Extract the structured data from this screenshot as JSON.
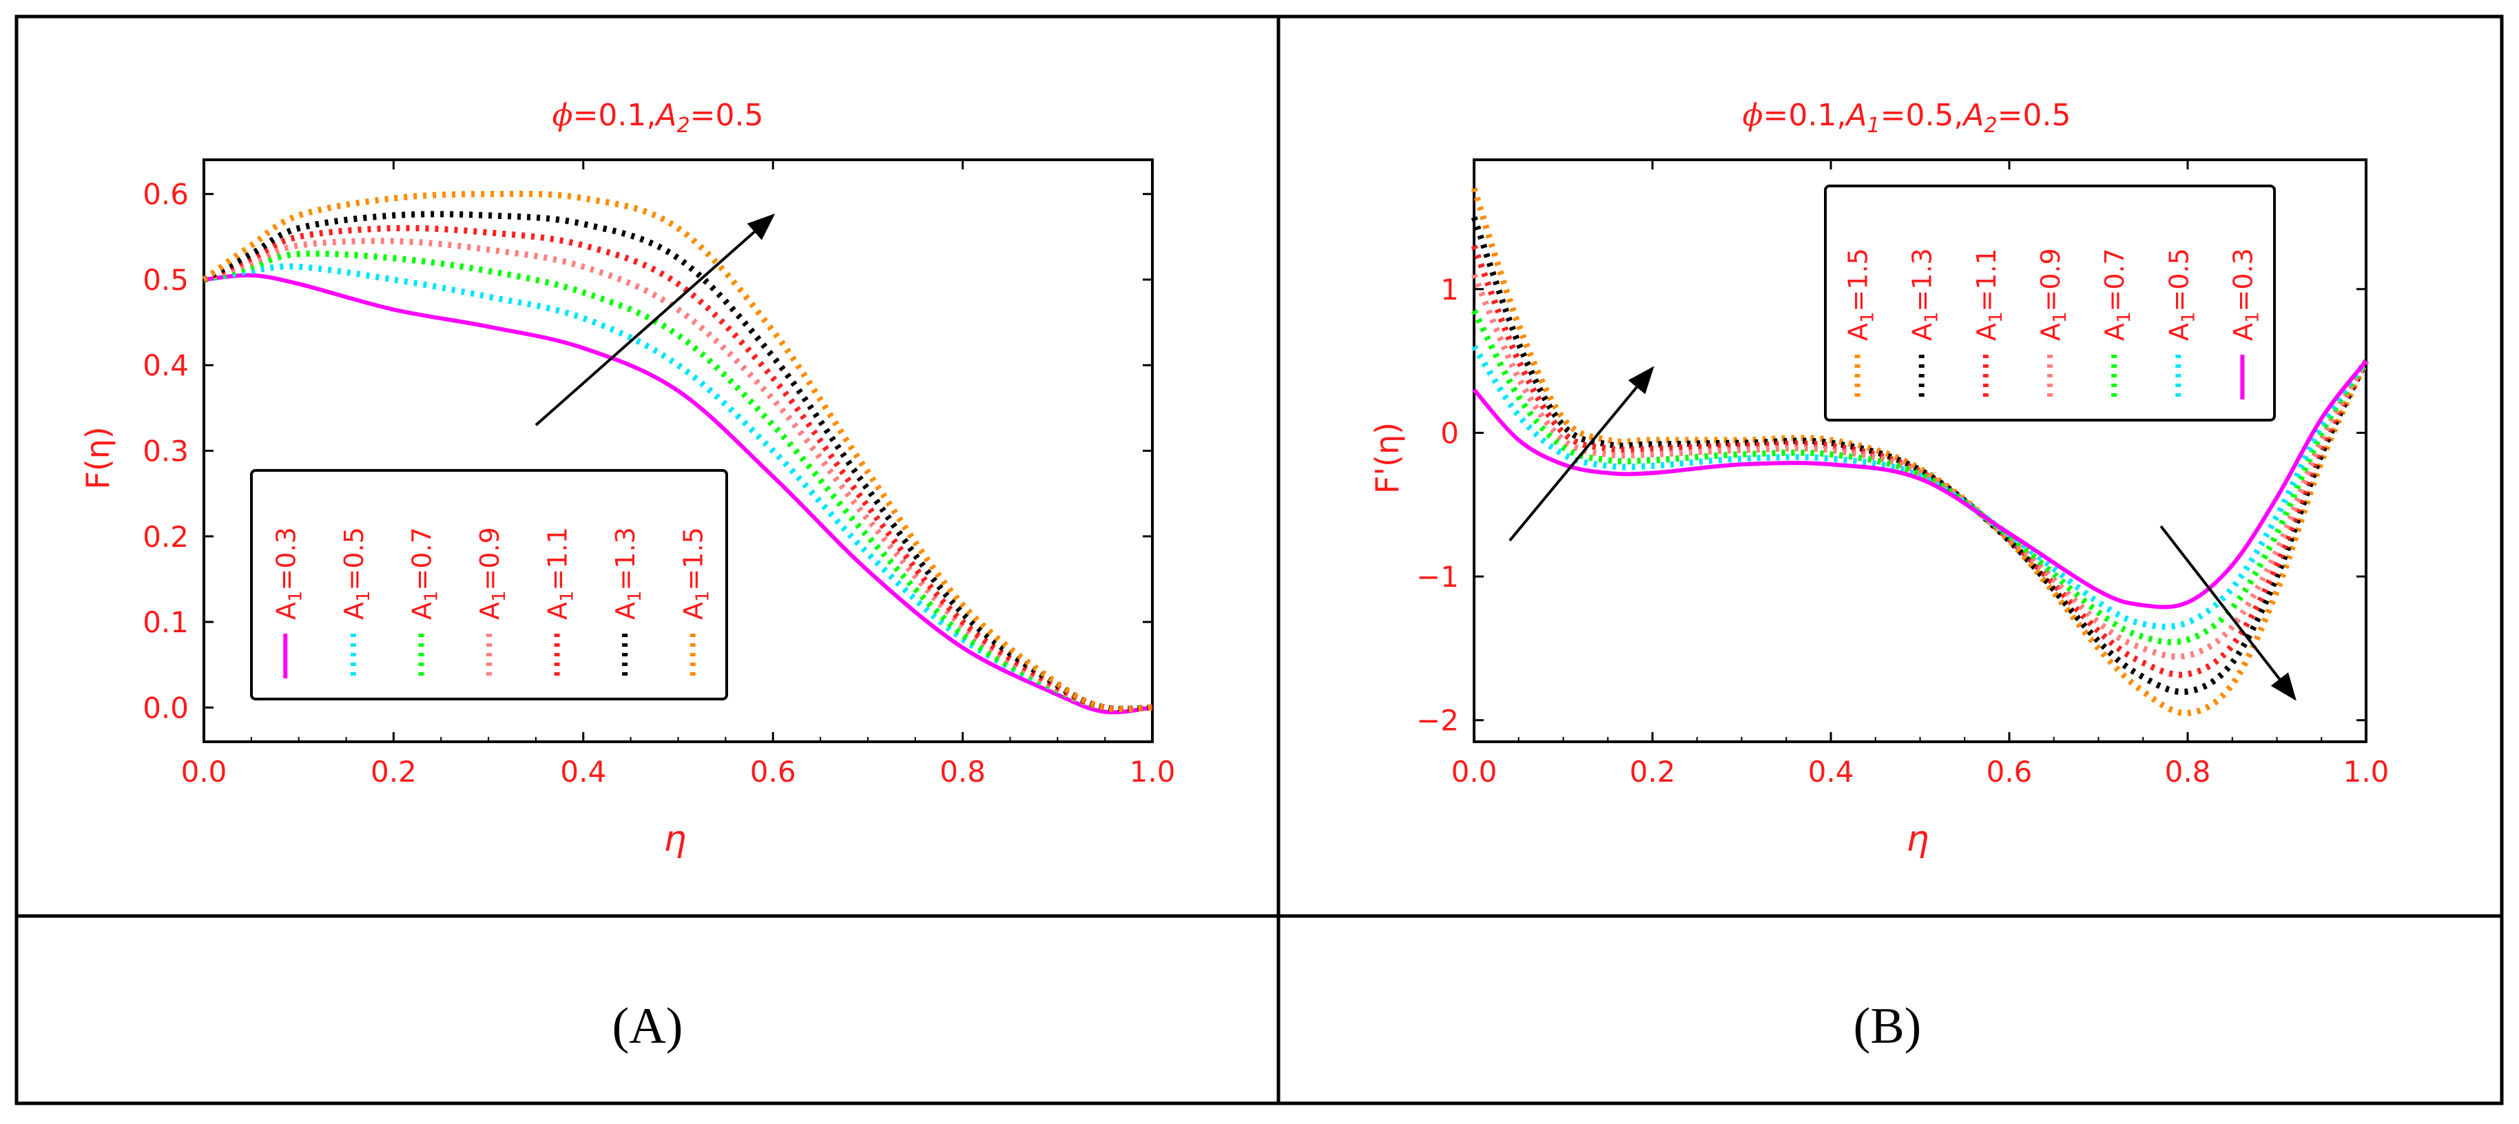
{
  "colors": {
    "text_red": "#ff1a1a",
    "series": [
      "#ff00ff",
      "#00e5ff",
      "#00ff00",
      "#ff8080",
      "#ff2020",
      "#000000",
      "#a0522d",
      "#ff8c00"
    ]
  },
  "captions": [
    "(A)",
    "(B)"
  ],
  "chart_data": [
    {
      "type": "line",
      "title_parts": {
        "phi": "ϕ",
        "rest": "=0.1,",
        "a2": "A",
        "a2sub": "2",
        "a2val": "=0.5"
      },
      "xlabel": "η",
      "ylabel": "F(η)",
      "xlim": [
        0.0,
        1.0
      ],
      "ylim": [
        -0.04,
        0.64
      ],
      "xticks": [
        "0.0",
        "0.2",
        "0.4",
        "0.6",
        "0.8",
        "1.0"
      ],
      "yticks": [
        "0.0",
        "0.1",
        "0.2",
        "0.3",
        "0.4",
        "0.5",
        "0.6"
      ],
      "legend_position": "bottom-left",
      "legend_orientation": "vertical-rotated",
      "series": [
        {
          "name": "A₁=0.3",
          "label_a": "A",
          "label_sub": "1",
          "label_val": "=0.3",
          "style": "solid",
          "x": [
            0.0,
            0.05,
            0.1,
            0.2,
            0.3,
            0.4,
            0.5,
            0.6,
            0.7,
            0.8,
            0.9,
            0.95,
            1.0
          ],
          "y": [
            0.5,
            0.505,
            0.495,
            0.465,
            0.445,
            0.42,
            0.37,
            0.27,
            0.16,
            0.07,
            0.015,
            -0.005,
            0.0
          ]
        },
        {
          "name": "A₁=0.5",
          "label_a": "A",
          "label_sub": "1",
          "label_val": "=0.5",
          "style": "dotted",
          "x": [
            0.0,
            0.05,
            0.1,
            0.2,
            0.3,
            0.4,
            0.5,
            0.6,
            0.7,
            0.8,
            0.9,
            0.95,
            1.0
          ],
          "y": [
            0.5,
            0.51,
            0.515,
            0.5,
            0.48,
            0.455,
            0.4,
            0.3,
            0.18,
            0.08,
            0.02,
            0.0,
            0.0
          ]
        },
        {
          "name": "A₁=0.7",
          "label_a": "A",
          "label_sub": "1",
          "label_val": "=0.7",
          "style": "dotted",
          "x": [
            0.0,
            0.05,
            0.1,
            0.2,
            0.3,
            0.4,
            0.5,
            0.6,
            0.7,
            0.8,
            0.9,
            0.95,
            1.0
          ],
          "y": [
            0.5,
            0.515,
            0.53,
            0.525,
            0.51,
            0.485,
            0.435,
            0.33,
            0.2,
            0.085,
            0.02,
            0.0,
            0.0
          ]
        },
        {
          "name": "A₁=0.9",
          "label_a": "A",
          "label_sub": "1",
          "label_val": "=0.9",
          "style": "dotted",
          "x": [
            0.0,
            0.05,
            0.1,
            0.2,
            0.3,
            0.4,
            0.5,
            0.6,
            0.7,
            0.8,
            0.9,
            0.95,
            1.0
          ],
          "y": [
            0.5,
            0.52,
            0.54,
            0.545,
            0.535,
            0.515,
            0.465,
            0.36,
            0.22,
            0.095,
            0.022,
            0.0,
            0.0
          ]
        },
        {
          "name": "A₁=1.1",
          "label_a": "A",
          "label_sub": "1",
          "label_val": "=1.1",
          "style": "dotted",
          "x": [
            0.0,
            0.05,
            0.1,
            0.2,
            0.3,
            0.4,
            0.5,
            0.6,
            0.7,
            0.8,
            0.9,
            0.95,
            1.0
          ],
          "y": [
            0.5,
            0.525,
            0.55,
            0.56,
            0.555,
            0.54,
            0.495,
            0.385,
            0.235,
            0.1,
            0.024,
            0.0,
            0.0
          ]
        },
        {
          "name": "A₁=1.3",
          "label_a": "A",
          "label_sub": "1",
          "label_val": "=1.3",
          "style": "dotted",
          "x": [
            0.0,
            0.05,
            0.1,
            0.2,
            0.3,
            0.4,
            0.5,
            0.6,
            0.7,
            0.8,
            0.9,
            0.95,
            1.0
          ],
          "y": [
            0.5,
            0.53,
            0.56,
            0.575,
            0.575,
            0.565,
            0.525,
            0.41,
            0.255,
            0.11,
            0.026,
            0.0,
            0.0
          ]
        },
        {
          "name": "A₁=1.5",
          "label_a": "A",
          "label_sub": "1",
          "label_val": "=1.5",
          "style": "dotted",
          "x": [
            0.0,
            0.05,
            0.1,
            0.2,
            0.3,
            0.4,
            0.5,
            0.6,
            0.7,
            0.8,
            0.9,
            0.95,
            1.0
          ],
          "y": [
            0.5,
            0.54,
            0.575,
            0.595,
            0.6,
            0.595,
            0.56,
            0.44,
            0.275,
            0.12,
            0.028,
            0.0,
            0.0
          ]
        }
      ],
      "arrow": {
        "from": [
          0.35,
          0.33
        ],
        "to": [
          0.6,
          0.575
        ]
      }
    },
    {
      "type": "line",
      "title_parts": {
        "phi": "ϕ",
        "rest": "=0.1,",
        "a1": "A",
        "a1sub": "1",
        "a1val": "=0.5,",
        "a2": "A",
        "a2sub": "2",
        "a2val": "=0.5"
      },
      "xlabel": "η",
      "ylabel": "F'(η)",
      "xlim": [
        0.0,
        1.0
      ],
      "ylim": [
        -2.15,
        1.9
      ],
      "xticks": [
        "0.0",
        "0.2",
        "0.4",
        "0.6",
        "0.8",
        "1.0"
      ],
      "yticks": [
        "−2",
        "−1",
        "0",
        "1"
      ],
      "ytick_values": [
        -2,
        -1,
        0,
        1
      ],
      "legend_position": "top-right",
      "legend_orientation": "vertical-rotated",
      "series": [
        {
          "name": "A₁=1.5",
          "label_a": "A",
          "label_sub": "1",
          "label_val": "=1.5",
          "style": "dotted",
          "x": [
            0.0,
            0.05,
            0.1,
            0.15,
            0.2,
            0.3,
            0.4,
            0.5,
            0.6,
            0.7,
            0.75,
            0.8,
            0.85,
            0.9,
            0.95,
            1.0
          ],
          "y": [
            1.7,
            0.75,
            0.1,
            -0.05,
            -0.05,
            -0.05,
            -0.05,
            -0.25,
            -0.75,
            -1.5,
            -1.8,
            -1.95,
            -1.75,
            -1.1,
            -0.2,
            0.5
          ]
        },
        {
          "name": "A₁=1.3",
          "label_a": "A",
          "label_sub": "1",
          "label_val": "=1.3",
          "style": "dotted",
          "x": [
            0.0,
            0.05,
            0.1,
            0.15,
            0.2,
            0.3,
            0.4,
            0.5,
            0.6,
            0.7,
            0.75,
            0.8,
            0.85,
            0.9,
            0.95,
            1.0
          ],
          "y": [
            1.5,
            0.62,
            0.05,
            -0.08,
            -0.08,
            -0.07,
            -0.07,
            -0.26,
            -0.75,
            -1.45,
            -1.7,
            -1.8,
            -1.6,
            -1.0,
            -0.15,
            0.5
          ]
        },
        {
          "name": "A₁=1.1",
          "label_a": "A",
          "label_sub": "1",
          "label_val": "=1.1",
          "style": "dotted",
          "x": [
            0.0,
            0.05,
            0.1,
            0.15,
            0.2,
            0.3,
            0.4,
            0.5,
            0.6,
            0.7,
            0.75,
            0.8,
            0.85,
            0.9,
            0.95,
            1.0
          ],
          "y": [
            1.3,
            0.5,
            0.0,
            -0.11,
            -0.11,
            -0.09,
            -0.09,
            -0.27,
            -0.74,
            -1.38,
            -1.6,
            -1.68,
            -1.48,
            -0.92,
            -0.1,
            0.5
          ]
        },
        {
          "name": "A₁=0.9",
          "label_a": "A",
          "label_sub": "1",
          "label_val": "=0.9",
          "style": "dotted",
          "x": [
            0.0,
            0.05,
            0.1,
            0.15,
            0.2,
            0.3,
            0.4,
            0.5,
            0.6,
            0.7,
            0.75,
            0.8,
            0.85,
            0.9,
            0.95,
            1.0
          ],
          "y": [
            1.1,
            0.38,
            -0.05,
            -0.15,
            -0.15,
            -0.12,
            -0.12,
            -0.28,
            -0.73,
            -1.32,
            -1.5,
            -1.55,
            -1.35,
            -0.82,
            -0.05,
            0.5
          ]
        },
        {
          "name": "A₁=0.7",
          "label_a": "A",
          "label_sub": "1",
          "label_val": "=0.7",
          "style": "dotted",
          "x": [
            0.0,
            0.05,
            0.1,
            0.15,
            0.2,
            0.3,
            0.4,
            0.5,
            0.6,
            0.7,
            0.75,
            0.8,
            0.85,
            0.9,
            0.95,
            1.0
          ],
          "y": [
            0.85,
            0.25,
            -0.1,
            -0.19,
            -0.19,
            -0.15,
            -0.15,
            -0.29,
            -0.72,
            -1.25,
            -1.42,
            -1.44,
            -1.22,
            -0.7,
            0.0,
            0.5
          ]
        },
        {
          "name": "A₁=0.5",
          "label_a": "A",
          "label_sub": "1",
          "label_val": "=0.5",
          "style": "dotted",
          "x": [
            0.0,
            0.05,
            0.1,
            0.15,
            0.2,
            0.3,
            0.4,
            0.5,
            0.6,
            0.7,
            0.75,
            0.8,
            0.85,
            0.9,
            0.95,
            1.0
          ],
          "y": [
            0.6,
            0.12,
            -0.15,
            -0.23,
            -0.23,
            -0.18,
            -0.18,
            -0.3,
            -0.71,
            -1.18,
            -1.33,
            -1.32,
            -1.08,
            -0.58,
            0.05,
            0.5
          ]
        },
        {
          "name": "A₁=0.3",
          "label_a": "A",
          "label_sub": "1",
          "label_val": "=0.3",
          "style": "solid",
          "x": [
            0.0,
            0.05,
            0.1,
            0.15,
            0.2,
            0.3,
            0.4,
            0.5,
            0.6,
            0.7,
            0.75,
            0.8,
            0.85,
            0.9,
            0.95,
            1.0
          ],
          "y": [
            0.3,
            -0.05,
            -0.22,
            -0.28,
            -0.28,
            -0.22,
            -0.22,
            -0.32,
            -0.7,
            -1.1,
            -1.2,
            -1.18,
            -0.92,
            -0.45,
            0.1,
            0.5
          ]
        }
      ],
      "arrows": [
        {
          "from": [
            0.04,
            -0.75
          ],
          "to": [
            0.2,
            0.45
          ]
        },
        {
          "from": [
            0.77,
            -0.65
          ],
          "to": [
            0.92,
            -1.85
          ]
        }
      ]
    }
  ]
}
